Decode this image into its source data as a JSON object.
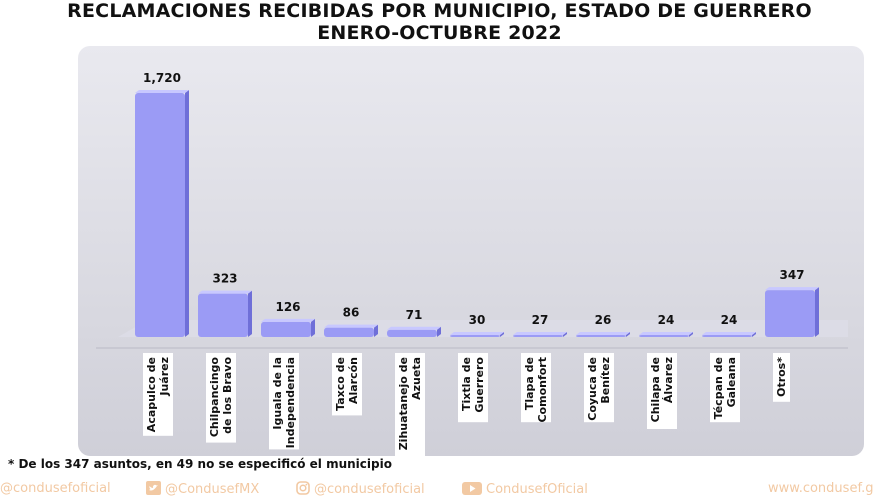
{
  "title_line1": "RECLAMACIONES RECIBIDAS POR MUNICIPIO, ESTADO DE GUERRERO",
  "title_line2": "ENERO-OCTUBRE 2022",
  "footnote": "* De los 347 asuntos, en 49 no se especificó el municipio",
  "social": {
    "facebook": "@condusefoficial",
    "twitter": "@CondusefMX",
    "instagram": "@condusefoficial",
    "youtube": "CondusefOficial",
    "web": "www.condusef.g"
  },
  "colors": {
    "bar": "#9b9bf5",
    "bar_top": "#c8c8ff",
    "bar_side": "#6f6fd8",
    "social": "#f2c9a3"
  },
  "chart_data": {
    "type": "bar",
    "categories": [
      [
        "Acapulco de",
        "Juárez"
      ],
      [
        "Chilpancingo",
        "de los Bravo"
      ],
      [
        "Iguala de la",
        "Independencia"
      ],
      [
        "Taxco de",
        "Alarcón"
      ],
      [
        "Zihuatanejo de",
        "Azueta"
      ],
      [
        "Tixtla de",
        "Guerrero"
      ],
      [
        "Tlapa de",
        "Comonfort"
      ],
      [
        "Coyuca de",
        "Benítez"
      ],
      [
        "Chilapa de",
        "Álvarez"
      ],
      [
        "Técpan de",
        "Galeana"
      ],
      [
        "Otros*"
      ]
    ],
    "values": [
      1720,
      323,
      126,
      86,
      71,
      30,
      27,
      26,
      24,
      24,
      347
    ],
    "value_labels": [
      "1,720",
      "323",
      "126",
      "86",
      "71",
      "30",
      "27",
      "26",
      "24",
      "24",
      "347"
    ],
    "ylim": [
      0,
      1720
    ]
  }
}
